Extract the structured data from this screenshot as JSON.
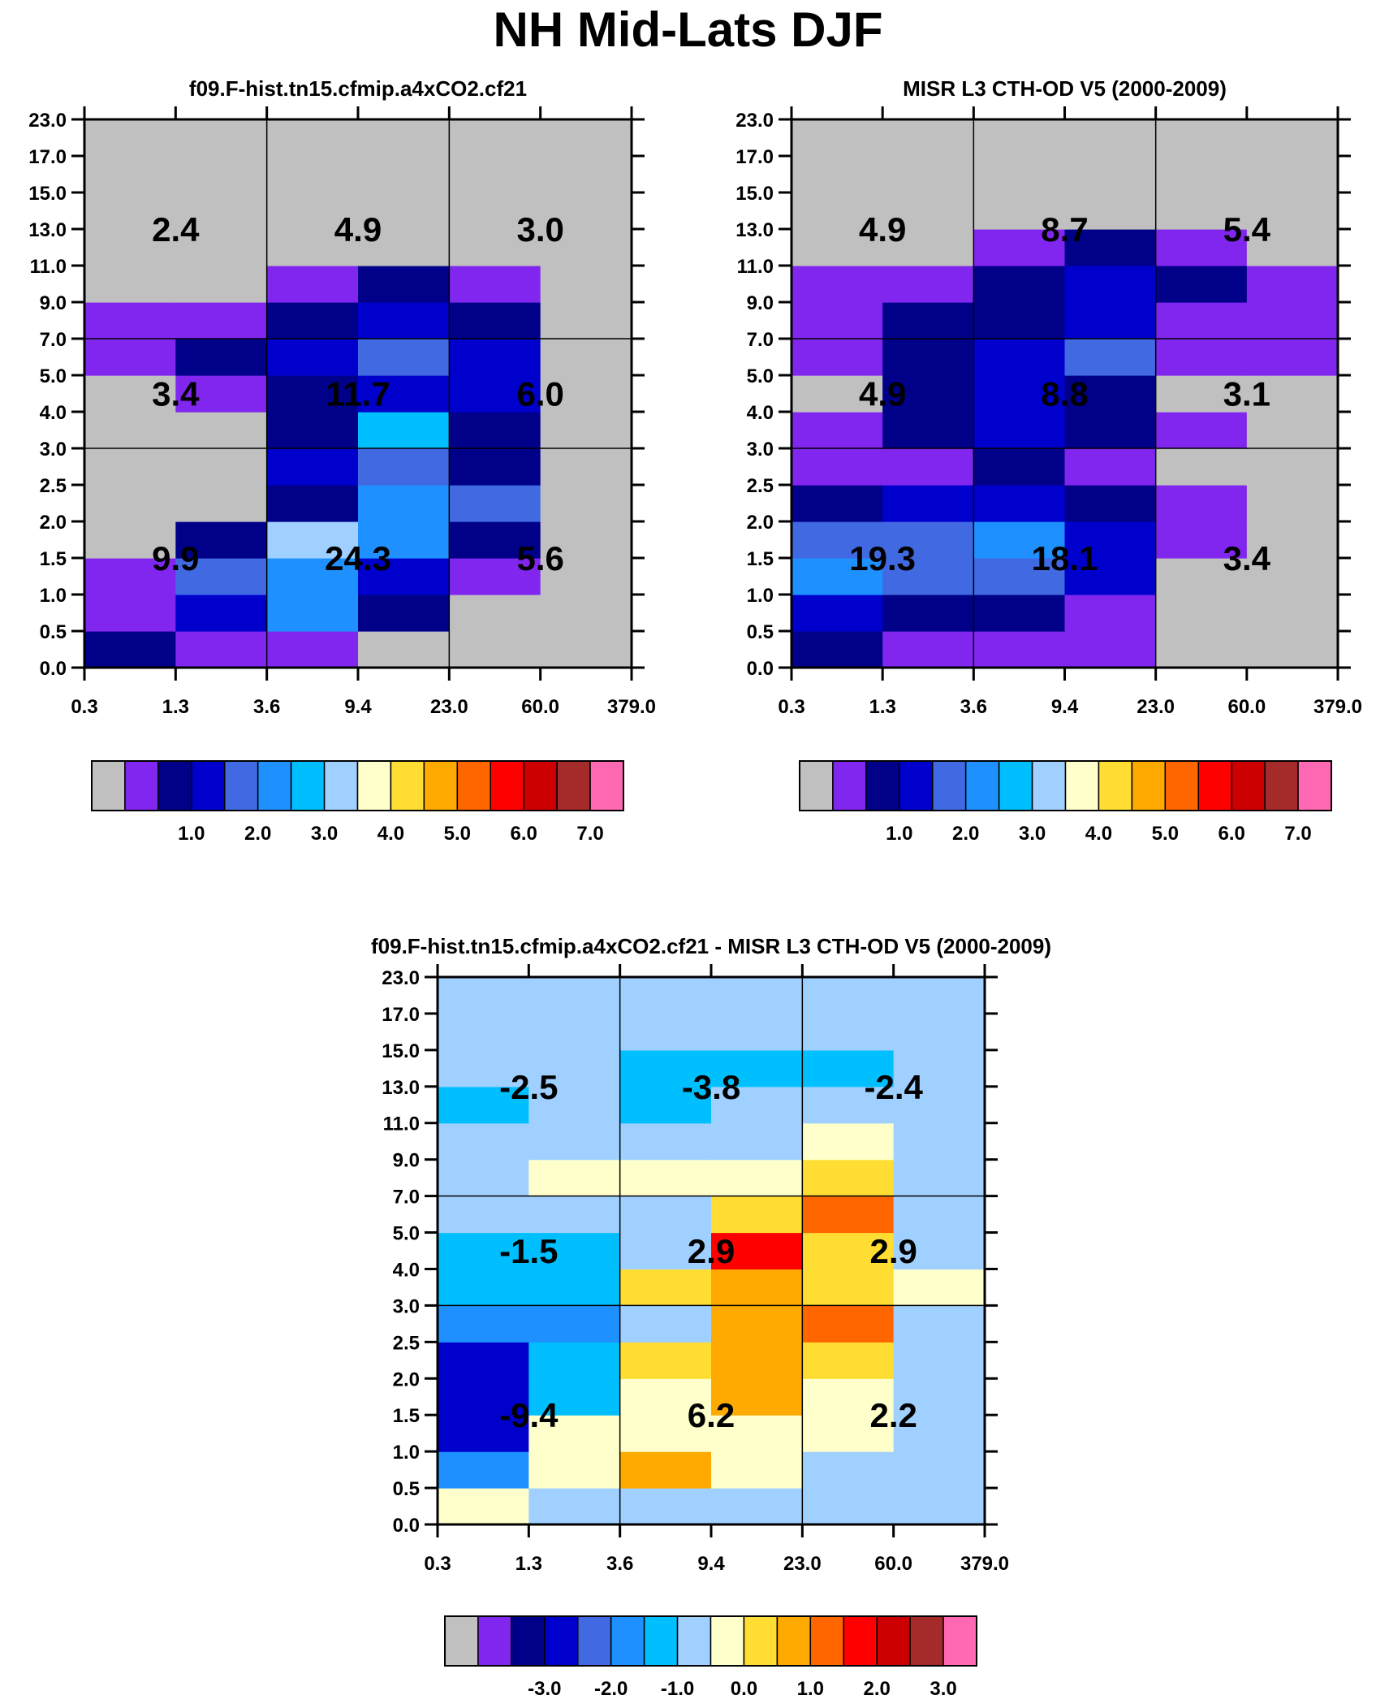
{
  "title": "NH Mid-Lats DJF",
  "palette": [
    "#c0c0c0",
    "#8026ee",
    "#000088",
    "#0000cc",
    "#4169e1",
    "#1e90ff",
    "#00bfff",
    "#a0d0ff",
    "#ffffcc",
    "#ffdd33",
    "#ffaa00",
    "#ff6600",
    "#ff0000",
    "#cc0000",
    "#a52a2a",
    "#ff69b4"
  ],
  "chart_data": [
    {
      "type": "heatmap",
      "title": "f09.F-hist.tn15.cfmip.a4xCO2.cf21",
      "x_ticks": [
        "0.3",
        "1.3",
        "3.6",
        "9.4",
        "23.0",
        "60.0",
        "379.0"
      ],
      "y_ticks": [
        "0.0",
        "0.5",
        "1.0",
        "1.5",
        "2.0",
        "2.5",
        "3.0",
        "4.0",
        "5.0",
        "7.0",
        "9.0",
        "11.0",
        "13.0",
        "15.0",
        "17.0",
        "23.0"
      ],
      "cells_color_index": [
        [
          2,
          1,
          1,
          0,
          0,
          0
        ],
        [
          1,
          3,
          5,
          2,
          0,
          0
        ],
        [
          1,
          4,
          5,
          3,
          1,
          0
        ],
        [
          0,
          2,
          7,
          5,
          2,
          0
        ],
        [
          0,
          0,
          2,
          5,
          4,
          0
        ],
        [
          0,
          0,
          3,
          4,
          2,
          0
        ],
        [
          0,
          0,
          2,
          6,
          2,
          0
        ],
        [
          0,
          1,
          2,
          3,
          3,
          0
        ],
        [
          1,
          2,
          3,
          4,
          3,
          0
        ],
        [
          1,
          1,
          2,
          3,
          2,
          0
        ],
        [
          0,
          0,
          1,
          2,
          1,
          0
        ],
        [
          0,
          0,
          0,
          0,
          0,
          0
        ],
        [
          0,
          0,
          0,
          0,
          0,
          0
        ],
        [
          0,
          0,
          0,
          0,
          0,
          0
        ],
        [
          0,
          0,
          0,
          0,
          0,
          0
        ]
      ],
      "block_labels": [
        [
          "9.9",
          "24.3",
          "5.6"
        ],
        [
          "3.4",
          "11.7",
          "6.0"
        ],
        [
          "2.4",
          "4.9",
          "3.0"
        ]
      ],
      "colorbar_labels": [
        "1.0",
        "2.0",
        "3.0",
        "4.0",
        "5.0",
        "6.0",
        "7.0"
      ]
    },
    {
      "type": "heatmap",
      "title": "MISR L3 CTH-OD V5 (2000-2009)",
      "x_ticks": [
        "0.3",
        "1.3",
        "3.6",
        "9.4",
        "23.0",
        "60.0",
        "379.0"
      ],
      "y_ticks": [
        "0.0",
        "0.5",
        "1.0",
        "1.5",
        "2.0",
        "2.5",
        "3.0",
        "4.0",
        "5.0",
        "7.0",
        "9.0",
        "11.0",
        "13.0",
        "15.0",
        "17.0",
        "23.0"
      ],
      "cells_color_index": [
        [
          2,
          1,
          1,
          1,
          0,
          0
        ],
        [
          3,
          2,
          2,
          1,
          0,
          0
        ],
        [
          5,
          4,
          4,
          3,
          0,
          0
        ],
        [
          4,
          4,
          5,
          3,
          1,
          0
        ],
        [
          2,
          3,
          3,
          2,
          1,
          0
        ],
        [
          1,
          1,
          2,
          1,
          0,
          0
        ],
        [
          1,
          2,
          3,
          2,
          1,
          0
        ],
        [
          0,
          2,
          3,
          2,
          0,
          0
        ],
        [
          1,
          2,
          3,
          4,
          1,
          1
        ],
        [
          1,
          2,
          2,
          3,
          1,
          1
        ],
        [
          1,
          1,
          2,
          3,
          2,
          1
        ],
        [
          0,
          0,
          1,
          2,
          1,
          0
        ],
        [
          0,
          0,
          0,
          0,
          0,
          0
        ],
        [
          0,
          0,
          0,
          0,
          0,
          0
        ],
        [
          0,
          0,
          0,
          0,
          0,
          0
        ]
      ],
      "block_labels": [
        [
          "19.3",
          "18.1",
          "3.4"
        ],
        [
          "4.9",
          "8.8",
          "3.1"
        ],
        [
          "4.9",
          "8.7",
          "5.4"
        ]
      ],
      "colorbar_labels": [
        "1.0",
        "2.0",
        "3.0",
        "4.0",
        "5.0",
        "6.0",
        "7.0"
      ]
    },
    {
      "type": "heatmap",
      "title": "f09.F-hist.tn15.cfmip.a4xCO2.cf21 - MISR L3 CTH-OD V5 (2000-2009)",
      "x_ticks": [
        "0.3",
        "1.3",
        "3.6",
        "9.4",
        "23.0",
        "60.0",
        "379.0"
      ],
      "y_ticks": [
        "0.0",
        "0.5",
        "1.0",
        "1.5",
        "2.0",
        "2.5",
        "3.0",
        "4.0",
        "5.0",
        "7.0",
        "9.0",
        "11.0",
        "13.0",
        "15.0",
        "17.0",
        "23.0"
      ],
      "cells_color_index": [
        [
          8,
          7,
          7,
          7,
          7,
          7
        ],
        [
          5,
          8,
          10,
          8,
          7,
          7
        ],
        [
          3,
          8,
          8,
          8,
          8,
          7
        ],
        [
          3,
          6,
          8,
          10,
          8,
          7
        ],
        [
          3,
          6,
          9,
          10,
          9,
          7
        ],
        [
          5,
          5,
          7,
          10,
          11,
          7
        ],
        [
          6,
          6,
          9,
          10,
          9,
          8
        ],
        [
          6,
          6,
          7,
          12,
          9,
          7
        ],
        [
          7,
          7,
          7,
          9,
          11,
          7
        ],
        [
          7,
          8,
          8,
          8,
          9,
          7
        ],
        [
          7,
          7,
          7,
          7,
          8,
          7
        ],
        [
          6,
          7,
          6,
          7,
          7,
          7
        ],
        [
          7,
          7,
          6,
          6,
          6,
          7
        ],
        [
          7,
          7,
          7,
          7,
          7,
          7
        ],
        [
          7,
          7,
          7,
          7,
          7,
          7
        ]
      ],
      "block_labels": [
        [
          "-9.4",
          "6.2",
          "2.2"
        ],
        [
          "-1.5",
          "2.9",
          "2.9"
        ],
        [
          "-2.5",
          "-3.8",
          "-2.4"
        ]
      ],
      "colorbar_labels": [
        "-3.0",
        "-2.0",
        "-1.0",
        "0.0",
        "1.0",
        "2.0",
        "3.0"
      ]
    }
  ]
}
